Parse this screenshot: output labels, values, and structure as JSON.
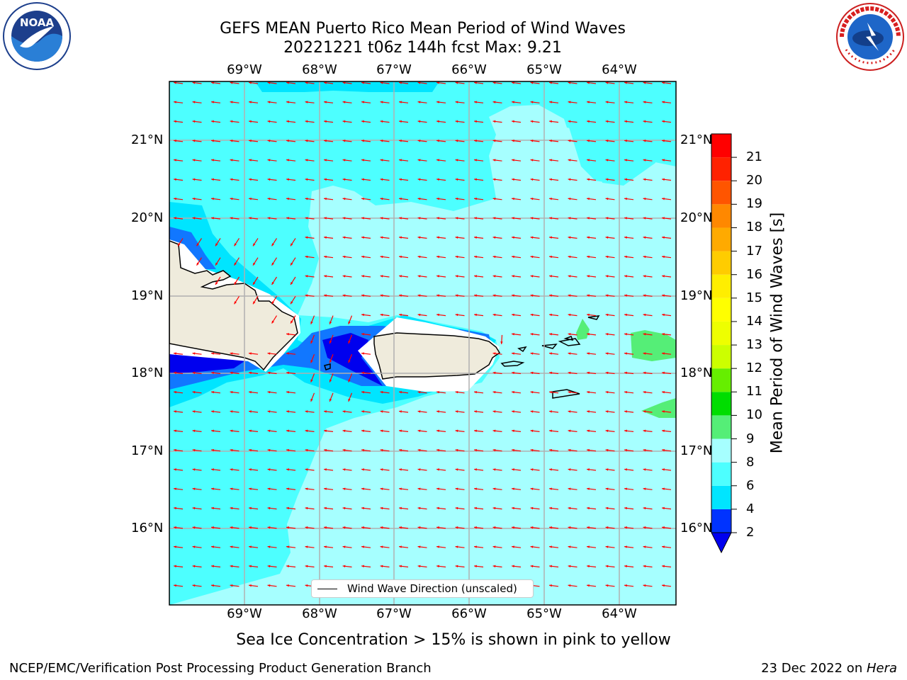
{
  "title_line1": "GEFS MEAN Puerto Rico Mean Period of Wind Waves",
  "title_line2": "20221221 t06z 144h fcst   Max: 9.21",
  "lon_ticks": [
    "69°W",
    "68°W",
    "67°W",
    "66°W",
    "65°W",
    "64°W"
  ],
  "lat_ticks": [
    "21°N",
    "20°N",
    "19°N",
    "18°N",
    "17°N",
    "16°N"
  ],
  "colorbar": {
    "title": "Mean Period of Wind Waves [s]",
    "labels": [
      "2",
      "4",
      "6",
      "8",
      "9",
      "10",
      "11",
      "12",
      "13",
      "14",
      "15",
      "16",
      "17",
      "18",
      "19",
      "20",
      "21"
    ],
    "colors": [
      "#0033ff",
      "#00e5ff",
      "#4dffff",
      "#a6ffff",
      "#55ee77",
      "#00dd00",
      "#66ee00",
      "#ccff00",
      "#eeff00",
      "#ffff00",
      "#ffee00",
      "#ffcc00",
      "#ffaa00",
      "#ff8800",
      "#ff5500",
      "#ff2200",
      "#ff0000"
    ],
    "under_color": "#0000ee"
  },
  "legend_label": "Wind Wave Direction (unscaled)",
  "logos": {
    "left": "NOAA",
    "right": "NATIONAL WEATHER SERVICE"
  },
  "note": "Sea Ice Concentration > 15% is shown in pink to yellow",
  "footer_left": "NCEP/EMC/Verification Post Processing Product Generation Branch",
  "footer_right_prefix": "23 Dec 2022 on ",
  "footer_right_host": "Hera",
  "colors": {
    "arrow": "#ff0000",
    "land": "#efebdc",
    "grid": "#b0b0b0",
    "light_sea": "#a6ffff",
    "mid_sea": "#4dffff",
    "dark_sea": "#00e5ff",
    "blue": "#1177ff",
    "deep_blue": "#0000ee"
  }
}
